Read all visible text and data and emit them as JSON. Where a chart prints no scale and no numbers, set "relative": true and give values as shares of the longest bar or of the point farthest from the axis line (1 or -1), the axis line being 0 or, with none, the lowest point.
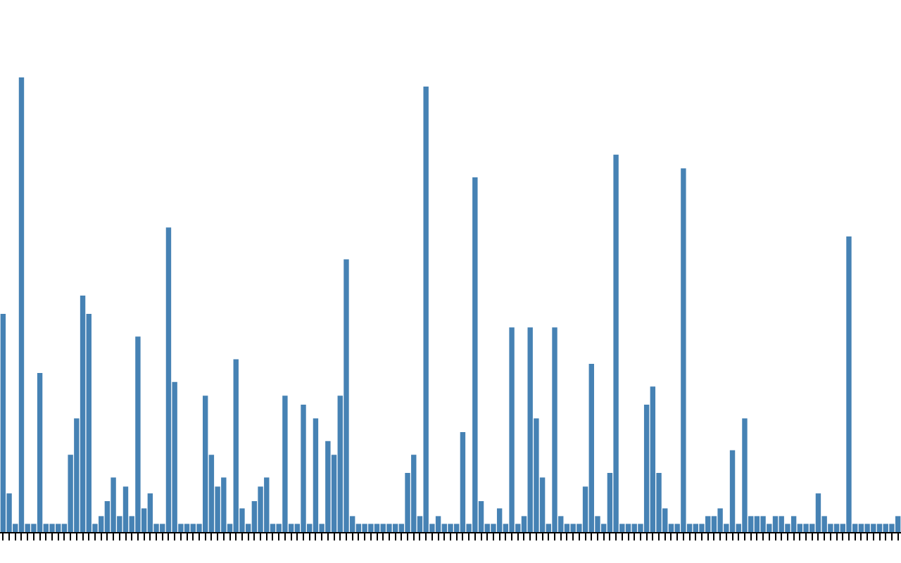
{
  "chart_data": {
    "type": "bar",
    "relative": true,
    "color": "#4682b4",
    "categories": [
      null,
      null,
      null,
      null,
      null,
      null,
      null,
      null,
      null,
      null,
      null,
      null,
      null,
      null,
      null,
      null,
      null,
      null,
      null,
      null,
      null,
      null,
      null,
      null,
      null,
      null,
      null,
      null,
      null,
      null,
      null,
      null,
      null,
      null,
      null,
      null,
      null,
      null,
      null,
      null,
      null,
      null,
      null,
      null,
      null,
      null,
      null,
      null,
      null,
      null,
      null,
      null,
      null,
      null,
      null,
      null,
      null,
      null,
      null,
      null,
      null,
      null,
      null,
      null,
      null,
      null,
      null,
      null,
      null,
      null,
      null,
      null,
      null,
      null,
      null,
      null,
      null,
      null,
      null,
      null,
      null,
      null,
      null,
      null,
      null,
      null,
      null,
      null,
      null,
      null,
      null,
      null,
      null,
      null,
      null,
      null,
      null,
      null,
      null,
      null,
      null,
      null,
      null,
      null,
      null,
      null,
      null,
      null,
      null,
      null,
      null,
      null,
      null,
      null,
      null,
      null,
      null,
      null,
      null,
      null,
      null,
      null,
      null,
      null,
      null,
      null,
      null,
      null,
      null,
      null,
      null,
      null,
      null,
      null,
      null,
      null,
      null,
      null,
      null,
      null,
      null,
      null,
      null,
      null,
      null,
      null,
      null
    ],
    "values": [
      0.48,
      0.085,
      0.018,
      1,
      0.018,
      0.018,
      0.35,
      0.018,
      0.018,
      0.018,
      0.018,
      0.17,
      0.25,
      0.52,
      0.48,
      0.018,
      0.035,
      0.068,
      0.12,
      0.035,
      0.1,
      0.035,
      0.43,
      0.052,
      0.085,
      0.018,
      0.018,
      0.67,
      0.33,
      0.018,
      0.018,
      0.018,
      0.018,
      0.3,
      0.17,
      0.1,
      0.12,
      0.018,
      0.38,
      0.052,
      0.018,
      0.068,
      0.1,
      0.12,
      0.018,
      0.018,
      0.3,
      0.018,
      0.018,
      0.28,
      0.018,
      0.25,
      0.018,
      0.2,
      0.17,
      0.3,
      0.6,
      0.035,
      0.018,
      0.018,
      0.018,
      0.018,
      0.018,
      0.018,
      0.018,
      0.018,
      0.13,
      0.17,
      0.035,
      0.98,
      0.018,
      0.035,
      0.018,
      0.018,
      0.018,
      0.22,
      0.018,
      0.78,
      0.068,
      0.018,
      0.018,
      0.052,
      0.018,
      0.45,
      0.018,
      0.035,
      0.45,
      0.25,
      0.12,
      0.018,
      0.45,
      0.035,
      0.018,
      0.018,
      0.018,
      0.1,
      0.37,
      0.035,
      0.018,
      0.13,
      0.83,
      0.018,
      0.018,
      0.018,
      0.018,
      0.28,
      0.32,
      0.13,
      0.052,
      0.018,
      0.018,
      0.8,
      0.018,
      0.018,
      0.018,
      0.035,
      0.035,
      0.052,
      0.018,
      0.18,
      0.018,
      0.25,
      0.035,
      0.035,
      0.035,
      0.018,
      0.035,
      0.035,
      0.018,
      0.035,
      0.018,
      0.018,
      0.018,
      0.085,
      0.035,
      0.018,
      0.018,
      0.018,
      0.65,
      0.018,
      0.018,
      0.018,
      0.018,
      0.018,
      0.018,
      0.018,
      0.035
    ]
  }
}
